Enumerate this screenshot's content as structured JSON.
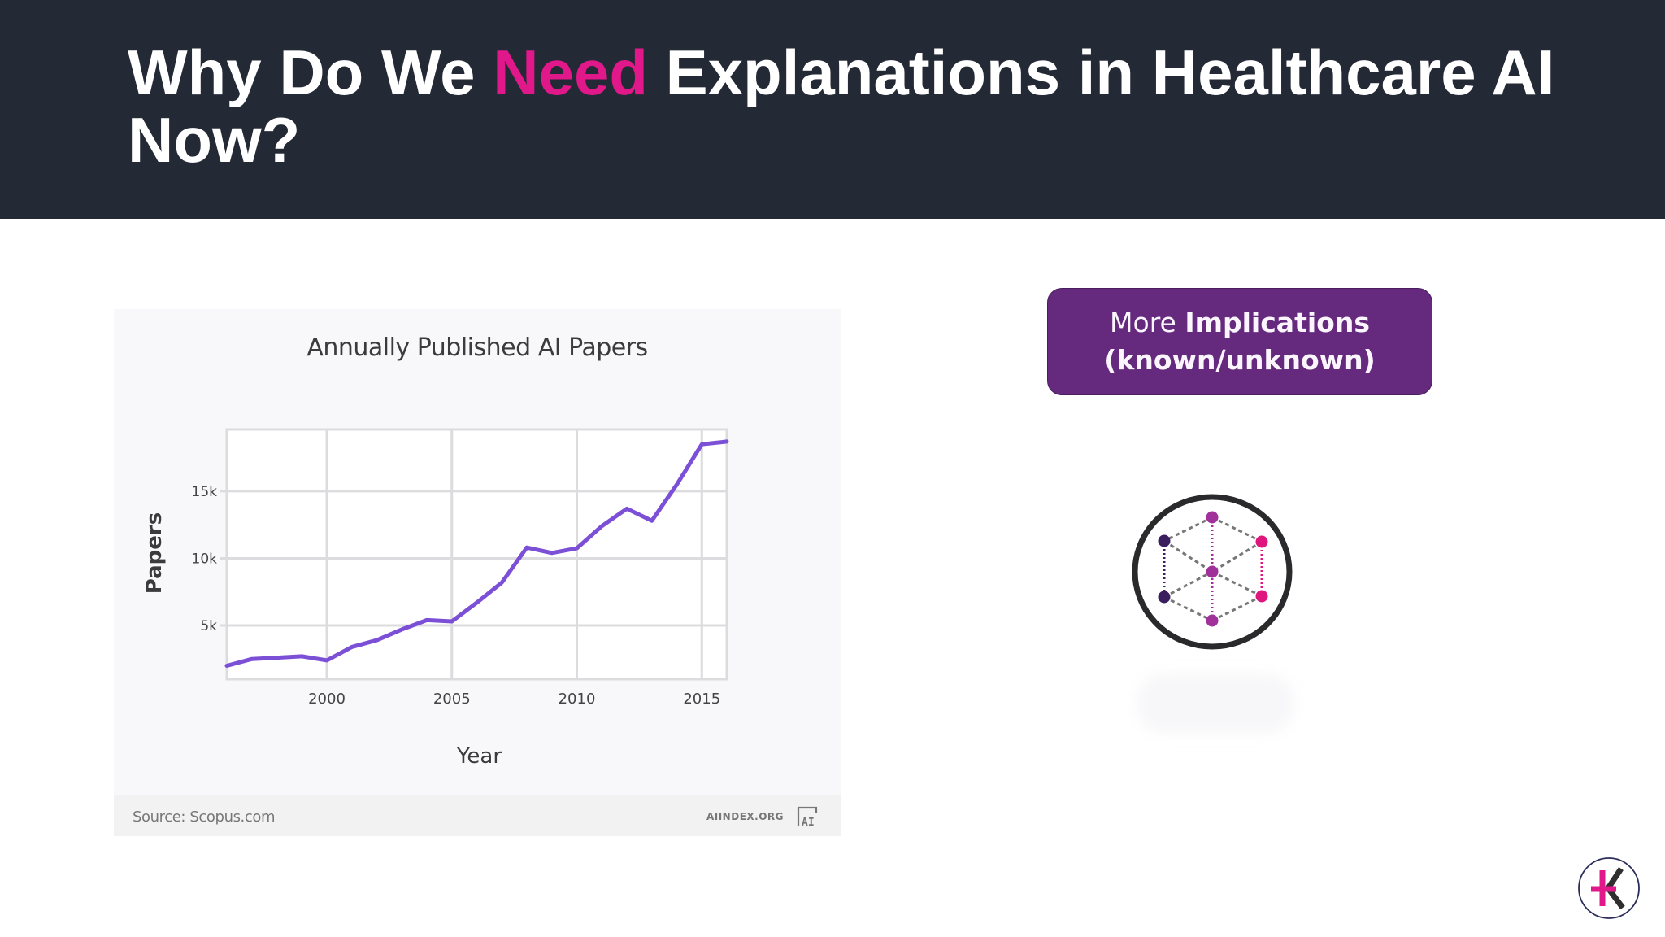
{
  "slide": {
    "title_part1": "Why Do We ",
    "title_accent": "Need",
    "title_part2": " Explanations in Healthcare AI Now?",
    "accent_color": "#e0188a",
    "header_bg": "#242936"
  },
  "chart_card": {
    "source": "Source: Scopus.com",
    "publisher": "AIINDEX.ORG",
    "publisher_logo": "AI"
  },
  "implications_box": {
    "line1_light": "More ",
    "line1_bold": "Implications",
    "line2_bold": "(known/unknown)",
    "color": "#652a7e"
  },
  "icons": {
    "network": "network-cube-icon",
    "brand": "brand-logo-icon"
  },
  "chart_data": {
    "type": "line",
    "title": "Annually Published AI Papers",
    "xlabel": "Year",
    "ylabel": "Papers",
    "x": [
      1996,
      1997,
      1998,
      1999,
      2000,
      2001,
      2002,
      2003,
      2004,
      2005,
      2006,
      2007,
      2008,
      2009,
      2010,
      2011,
      2012,
      2013,
      2014,
      2015,
      2016
    ],
    "series": [
      {
        "name": "Papers",
        "color": "#7b4fd6",
        "values": [
          2000,
          2500,
          2600,
          2700,
          2400,
          3400,
          3900,
          4700,
          5400,
          5300,
          6700,
          8200,
          10800,
          10400,
          10750,
          12400,
          13700,
          12800,
          15500,
          18500,
          18700
        ]
      }
    ],
    "xticks": [
      2000,
      2005,
      2010,
      2015
    ],
    "xtick_labels": [
      "2000",
      "2005",
      "2010",
      "2015"
    ],
    "yticks": [
      5000,
      10000,
      15000
    ],
    "ytick_labels": [
      "5k",
      "10k",
      "15k"
    ],
    "xlim": [
      1996,
      2016
    ],
    "ylim": [
      1000,
      19600
    ],
    "grid": true,
    "legend": "none",
    "source": "Source: Scopus.com"
  }
}
